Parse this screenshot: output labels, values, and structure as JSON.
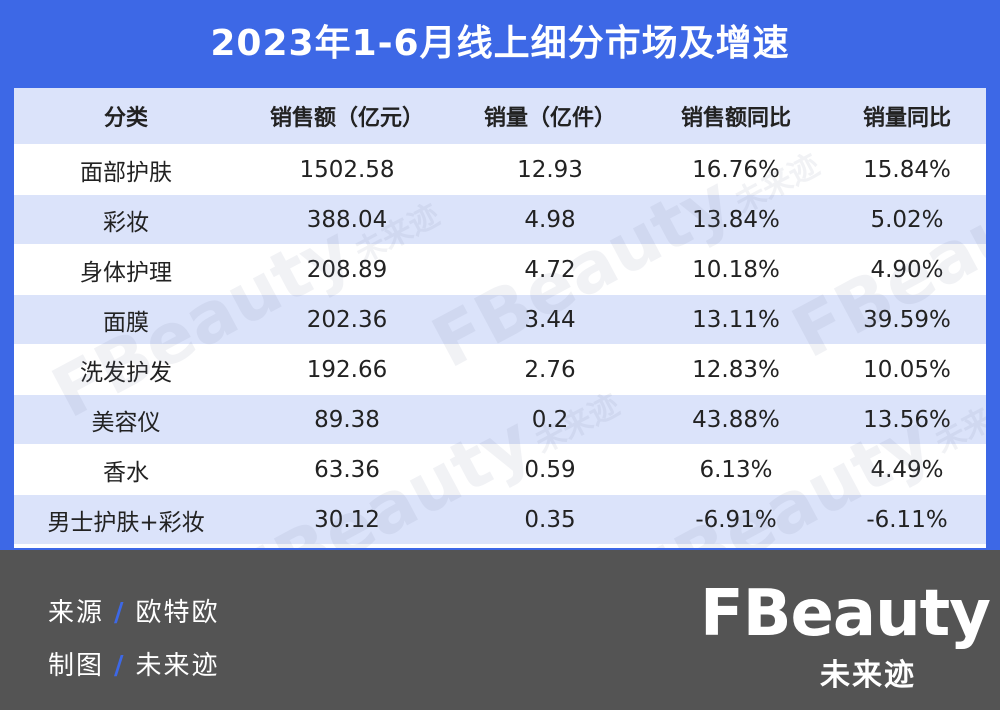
{
  "title": "2023年1-6月线上细分市场及增速",
  "table": {
    "headers": [
      "分类",
      "销售额（亿元）",
      "销量（亿件）",
      "销售额同比",
      "销量同比"
    ],
    "rows": [
      [
        "面部护肤",
        "1502.58",
        "12.93",
        "16.76%",
        "15.84%"
      ],
      [
        "彩妆",
        "388.04",
        "4.98",
        "13.84%",
        "5.02%"
      ],
      [
        "身体护理",
        "208.89",
        "4.72",
        "10.18%",
        "4.90%"
      ],
      [
        "面膜",
        "202.36",
        "3.44",
        "13.11%",
        "39.59%"
      ],
      [
        "洗发护发",
        "192.66",
        "2.76",
        "12.83%",
        "10.05%"
      ],
      [
        "美容仪",
        "89.38",
        "0.2",
        "43.88%",
        "13.56%"
      ],
      [
        "香水",
        "63.36",
        "0.59",
        "6.13%",
        "4.49%"
      ],
      [
        "男士护肤+彩妆",
        "30.12",
        "0.35",
        "-6.91%",
        "-6.11%"
      ]
    ]
  },
  "watermark": {
    "word": "FBeauty",
    "sub": "未来迹"
  },
  "footer": {
    "source_label": "来源",
    "source_value": "欧特欧",
    "maker_label": "制图",
    "maker_value": "未来迹",
    "separator": "/"
  },
  "logo": {
    "word": "FBeauty",
    "sub": "未来迹"
  },
  "colors": {
    "accent": "#3d68e6",
    "row_alt": "#dbe3fa",
    "footer_bg": "#545454"
  }
}
